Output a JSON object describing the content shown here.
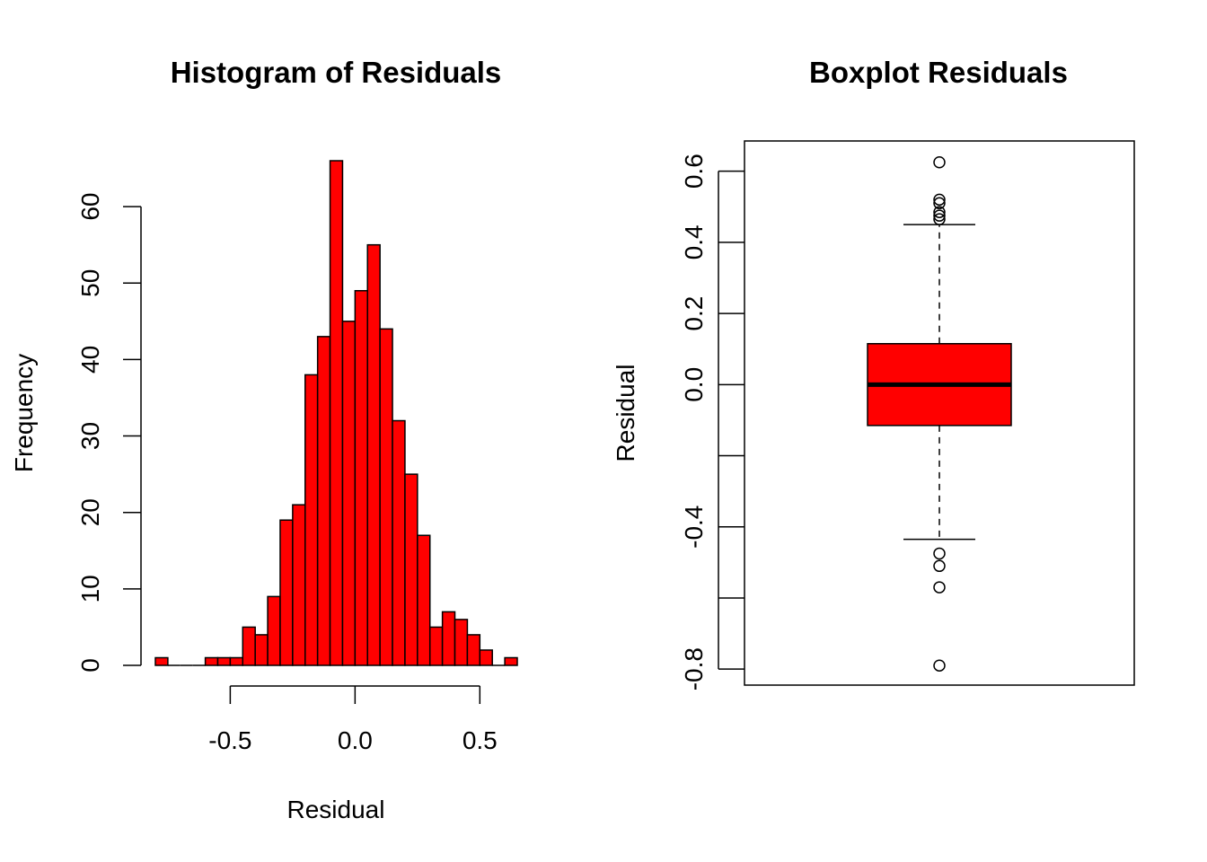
{
  "chart_data": [
    {
      "type": "bar",
      "subtype": "histogram",
      "title": "Histogram of Residuals",
      "xlabel": "Residual",
      "ylabel": "Frequency",
      "bin_width": 0.05,
      "bins": [
        {
          "x0": -0.8,
          "x1": -0.75,
          "count": 1
        },
        {
          "x0": -0.75,
          "x1": -0.7,
          "count": 0
        },
        {
          "x0": -0.7,
          "x1": -0.65,
          "count": 0
        },
        {
          "x0": -0.65,
          "x1": -0.6,
          "count": 0
        },
        {
          "x0": -0.6,
          "x1": -0.55,
          "count": 1
        },
        {
          "x0": -0.55,
          "x1": -0.5,
          "count": 1
        },
        {
          "x0": -0.5,
          "x1": -0.45,
          "count": 1
        },
        {
          "x0": -0.45,
          "x1": -0.4,
          "count": 5
        },
        {
          "x0": -0.4,
          "x1": -0.35,
          "count": 4
        },
        {
          "x0": -0.35,
          "x1": -0.3,
          "count": 9
        },
        {
          "x0": -0.3,
          "x1": -0.25,
          "count": 19
        },
        {
          "x0": -0.25,
          "x1": -0.2,
          "count": 21
        },
        {
          "x0": -0.2,
          "x1": -0.15,
          "count": 38
        },
        {
          "x0": -0.15,
          "x1": -0.1,
          "count": 43
        },
        {
          "x0": -0.1,
          "x1": -0.05,
          "count": 66
        },
        {
          "x0": -0.05,
          "x1": 0.0,
          "count": 45
        },
        {
          "x0": 0.0,
          "x1": 0.05,
          "count": 49
        },
        {
          "x0": 0.05,
          "x1": 0.1,
          "count": 55
        },
        {
          "x0": 0.1,
          "x1": 0.15,
          "count": 44
        },
        {
          "x0": 0.15,
          "x1": 0.2,
          "count": 32
        },
        {
          "x0": 0.2,
          "x1": 0.25,
          "count": 25
        },
        {
          "x0": 0.25,
          "x1": 0.3,
          "count": 17
        },
        {
          "x0": 0.3,
          "x1": 0.35,
          "count": 5
        },
        {
          "x0": 0.35,
          "x1": 0.4,
          "count": 7
        },
        {
          "x0": 0.4,
          "x1": 0.45,
          "count": 6
        },
        {
          "x0": 0.45,
          "x1": 0.5,
          "count": 4
        },
        {
          "x0": 0.5,
          "x1": 0.55,
          "count": 2
        },
        {
          "x0": 0.55,
          "x1": 0.6,
          "count": 0
        },
        {
          "x0": 0.6,
          "x1": 0.65,
          "count": 1
        }
      ],
      "xlim": [
        -0.8,
        0.65
      ],
      "ylim": [
        0,
        66
      ],
      "x_ticks": [
        -0.5,
        0.0,
        0.5
      ],
      "x_tick_labels": [
        "-0.5",
        "0.0",
        "0.5"
      ],
      "y_ticks": [
        0,
        10,
        20,
        30,
        40,
        50,
        60
      ],
      "y_tick_labels": [
        "0",
        "10",
        "20",
        "30",
        "40",
        "50",
        "60"
      ],
      "fill_color": "#ff0000",
      "border_color": "#000000",
      "grid": false
    },
    {
      "type": "boxplot",
      "title": "Boxplot Residuals",
      "xlabel": "",
      "ylabel": "Residual",
      "stats": {
        "whisker_low": -0.435,
        "q1": -0.115,
        "median": 0.0,
        "q3": 0.115,
        "whisker_high": 0.45
      },
      "outliers": [
        0.625,
        0.52,
        0.51,
        0.485,
        0.475,
        0.465,
        -0.475,
        -0.51,
        -0.57,
        -0.79
      ],
      "ylim": [
        -0.845,
        0.685
      ],
      "y_ticks": [
        -0.8,
        -0.6,
        -0.4,
        -0.2,
        0.0,
        0.2,
        0.4,
        0.6
      ],
      "y_tick_labels": [
        "-0.8",
        "",
        "-0.4",
        "",
        "0.0",
        "0.2",
        "0.4",
        "0.6"
      ],
      "fill_color": "#ff0000",
      "border_color": "#000000",
      "grid": false
    }
  ]
}
